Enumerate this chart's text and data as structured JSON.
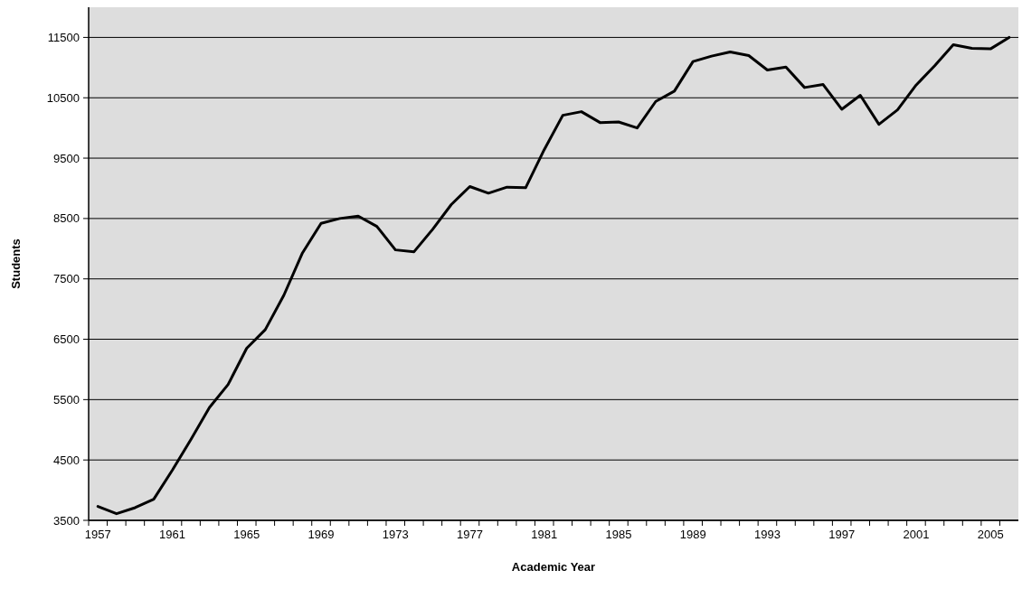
{
  "chart_data": {
    "type": "line",
    "xlabel": "Academic Year",
    "ylabel": "Students",
    "x": [
      1957,
      1958,
      1959,
      1960,
      1961,
      1962,
      1963,
      1964,
      1965,
      1966,
      1967,
      1968,
      1969,
      1970,
      1971,
      1972,
      1973,
      1974,
      1975,
      1976,
      1977,
      1978,
      1979,
      1980,
      1981,
      1982,
      1983,
      1984,
      1985,
      1986,
      1987,
      1988,
      1989,
      1990,
      1991,
      1992,
      1993,
      1994,
      1995,
      1996,
      1997,
      1998,
      1999,
      2000,
      2001,
      2002,
      2003,
      2004,
      2005,
      2006
    ],
    "series": [
      {
        "color": "#000000",
        "values": [
          3730,
          3610,
          3710,
          3850,
          4330,
          4840,
          5370,
          5750,
          6350,
          6660,
          7230,
          7930,
          8420,
          8500,
          8540,
          8370,
          7980,
          7950,
          8320,
          8730,
          9030,
          8920,
          9020,
          9010,
          9640,
          10210,
          10270,
          10090,
          10100,
          10000,
          10440,
          10610,
          11100,
          11190,
          11260,
          11200,
          10960,
          11010,
          10670,
          10720,
          10310,
          10540,
          10060,
          10300,
          10710,
          11030,
          11380,
          11320,
          11310,
          11500
        ]
      }
    ],
    "xlim": [
      1956.5,
      2006.5
    ],
    "xticks": [
      1957,
      1961,
      1965,
      1969,
      1973,
      1977,
      1981,
      1985,
      1989,
      1993,
      1997,
      2001,
      2005
    ],
    "ylim": [
      3500,
      12000
    ],
    "yticks": [
      3500,
      4500,
      5500,
      6500,
      7500,
      8500,
      9500,
      10500,
      11500
    ],
    "grid": "y",
    "marker": "none",
    "line_style": "solid"
  }
}
